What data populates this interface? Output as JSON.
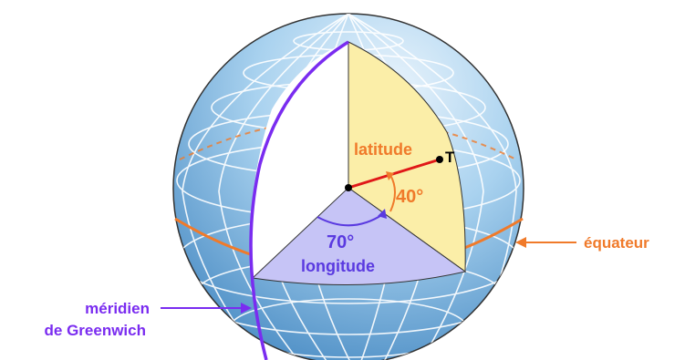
{
  "labels": {
    "latitude": "latitude",
    "latitude_angle": "40°",
    "longitude_angle": "70°",
    "longitude": "longitude",
    "point": "T",
    "equator": "équateur",
    "meridian_line1": "méridien",
    "meridian_line2": "de Greenwich"
  },
  "colors": {
    "globe_light": "#eaf4fc",
    "globe_mid": "#9ccbec",
    "globe_dark": "#4a8cc4",
    "grid": "#ffffff",
    "equator": "#f07a2a",
    "latitude_text": "#f07a2a",
    "greenwich": "#7a2cf0",
    "longitude_text": "#5a3ae0",
    "radius_line": "#e01818",
    "latitude_wedge": "#fbeea8",
    "longitude_wedge": "#c6c4f6",
    "cut_face": "#ffffff"
  }
}
